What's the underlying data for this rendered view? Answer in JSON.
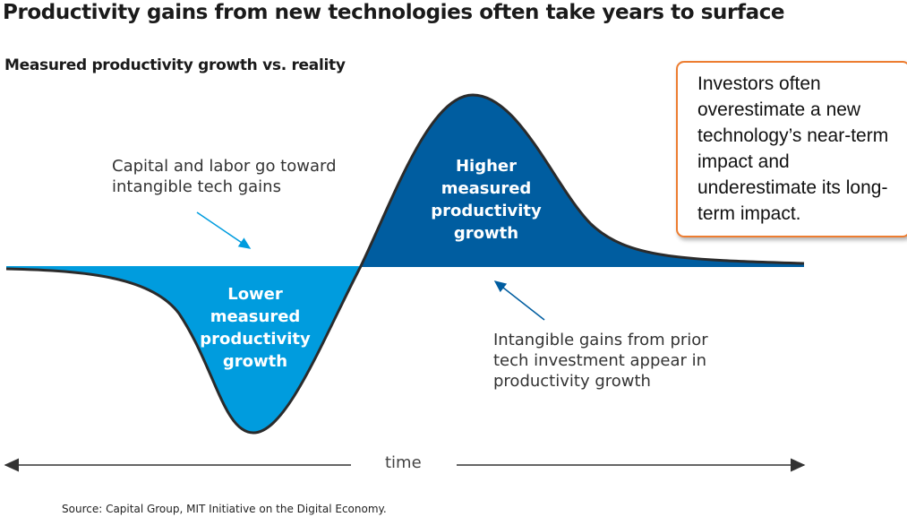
{
  "title": "Productivity gains from new technologies often take years to surface",
  "subtitle": "Measured productivity growth vs. reality",
  "annotations": {
    "left": "Capital and labor go toward intangible tech gains",
    "right": "Intangible gains from prior tech investment appear in productivity growth"
  },
  "regions": {
    "lower": "Lower measured productivity growth",
    "higher": "Higher measured productivity growth"
  },
  "callout": "Investors often overestimate a new technology’s near-term impact and underestimate its long-term impact.",
  "axis_label": "time",
  "source": "Source: Capital Group, MIT Initiative on the Digital Economy.",
  "colors": {
    "lower_fill": "#009CDE",
    "higher_fill": "#005DA0",
    "curve": "#2b2b2b",
    "callout_border": "#ED7D31"
  }
}
